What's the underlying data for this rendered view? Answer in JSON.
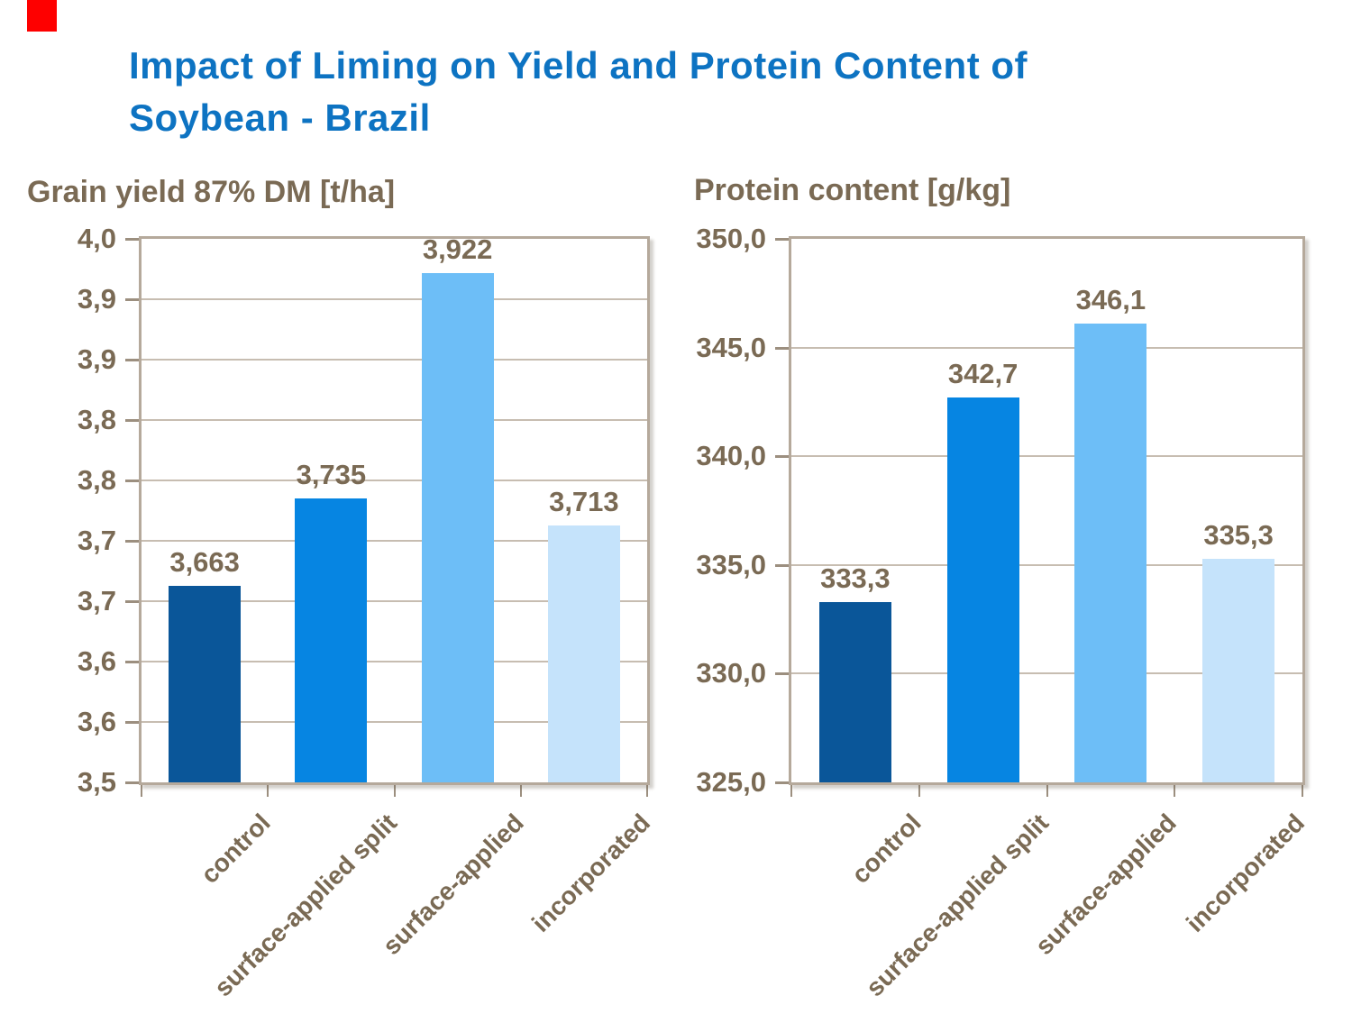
{
  "slide": {
    "logo_color": "#FE0000",
    "title_line1": "Impact of Liming on Yield and Protein Content of",
    "title_line2": "Soybean - Brazil",
    "title_color": "#0D73C2",
    "text_color": "#7A6A54"
  },
  "colors": {
    "grid": "#C7BDB1",
    "frame": "#B5A99B",
    "tick": "#9C8F7F"
  },
  "chart_data": [
    {
      "type": "bar",
      "title": "Grain yield 87% DM [t/ha]",
      "categories": [
        "control",
        "surface-applied split",
        "surface-applied",
        "incorporated"
      ],
      "values": [
        3.663,
        3.735,
        3.922,
        3.713
      ],
      "value_labels": [
        "3,663",
        "3,735",
        "3,922",
        "3,713"
      ],
      "ylim": [
        3.5,
        3.95
      ],
      "ytick_labels_top_to_bottom": [
        "4,0",
        "3,9",
        "3,9",
        "3,8",
        "3,8",
        "3,7",
        "3,7",
        "3,6",
        "3,6",
        "3,5"
      ],
      "grid": true,
      "legend": "none",
      "bar_colors": [
        "#0A5699",
        "#0685E2",
        "#6DBEF7",
        "#C5E3FB"
      ]
    },
    {
      "type": "bar",
      "title": "Protein content [g/kg]",
      "categories": [
        "control",
        "surface-applied split",
        "surface-applied",
        "incorporated"
      ],
      "values": [
        333.3,
        342.7,
        346.1,
        335.3
      ],
      "value_labels": [
        "333,3",
        "342,7",
        "346,1",
        "335,3"
      ],
      "ylim": [
        325,
        350
      ],
      "ytick_labels_top_to_bottom": [
        "350,0",
        "345,0",
        "340,0",
        "335,0",
        "330,0",
        "325,0"
      ],
      "grid": true,
      "legend": "none",
      "bar_colors": [
        "#0A5699",
        "#0685E2",
        "#6DBEF7",
        "#C5E3FB"
      ]
    }
  ]
}
